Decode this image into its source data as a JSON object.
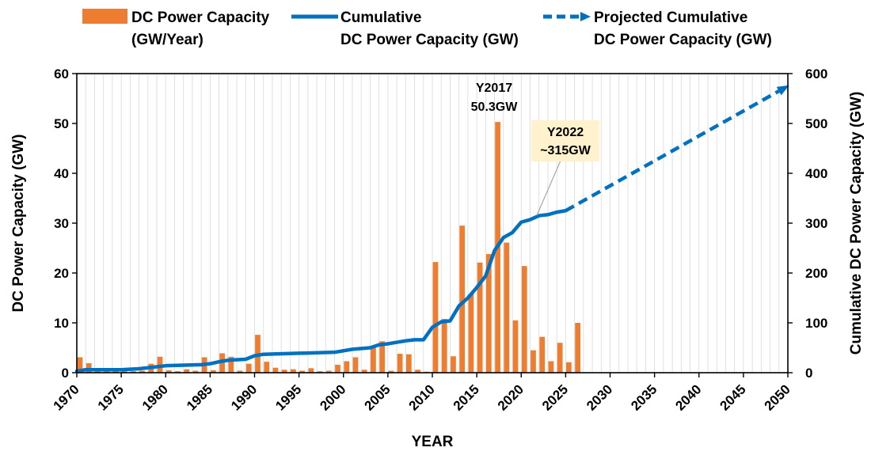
{
  "chart_data": {
    "type": "bar+line",
    "colors": {
      "bars": "#ED7D31",
      "line": "#0070C0",
      "axis": "#000000",
      "grid": "#D9D9D9",
      "callout_bg": "#FFF2CC",
      "leader": "#A6A6A6"
    },
    "legend": {
      "position": "top",
      "items": [
        {
          "kind": "bar",
          "line1": "DC Power Capacity",
          "line2": "(GW/Year)"
        },
        {
          "kind": "line",
          "line1": "Cumulative",
          "line2": "DC Power Capacity (GW)"
        },
        {
          "kind": "dashed-arrow",
          "line1": "Projected Cumulative",
          "line2": "DC Power Capacity (GW)"
        }
      ]
    },
    "xlabel": "YEAR",
    "ylabel_left": "DC Power Capacity (GW)",
    "ylabel_right": "Cumulative DC Power Capacity (GW)",
    "xlim": [
      1970,
      2050
    ],
    "ylim_left": [
      0,
      60
    ],
    "ylim_right": [
      0,
      600
    ],
    "x_ticks": [
      1970,
      1975,
      1980,
      1985,
      1990,
      1995,
      2000,
      2005,
      2010,
      2015,
      2020,
      2025,
      2030,
      2035,
      2040,
      2045,
      2050
    ],
    "y_ticks_left": [
      0,
      10,
      20,
      30,
      40,
      50,
      60
    ],
    "y_ticks_right": [
      0,
      100,
      200,
      300,
      400,
      500,
      600
    ],
    "grid": "vertical",
    "annual_capacity": {
      "name": "DC Power Capacity (GW/Year)",
      "x": [
        1970,
        1971,
        1972,
        1973,
        1974,
        1975,
        1976,
        1977,
        1978,
        1979,
        1980,
        1981,
        1982,
        1983,
        1984,
        1985,
        1986,
        1987,
        1988,
        1989,
        1990,
        1991,
        1992,
        1993,
        1994,
        1995,
        1996,
        1997,
        1998,
        1999,
        2000,
        2001,
        2002,
        2003,
        2004,
        2005,
        2006,
        2007,
        2008,
        2009,
        2010,
        2011,
        2012,
        2013,
        2014,
        2015,
        2016,
        2017,
        2018,
        2019,
        2020,
        2021,
        2022,
        2023,
        2024,
        2025,
        2026
      ],
      "values": [
        3.1,
        1.9,
        0.5,
        0.4,
        0.3,
        0.3,
        0.3,
        0.4,
        1.8,
        3.2,
        0.5,
        0.3,
        0.7,
        0.4,
        3.1,
        0.5,
        3.9,
        3.2,
        0.4,
        1.8,
        7.6,
        2.2,
        1.0,
        0.6,
        0.7,
        0.4,
        0.9,
        0.3,
        0.4,
        1.6,
        2.3,
        3.1,
        0.6,
        5.0,
        6.3,
        0.4,
        3.8,
        3.7,
        0.6,
        0.2,
        22.2,
        10.8,
        3.3,
        29.5,
        15.8,
        22.1,
        23.8,
        50.3,
        26.1,
        10.5,
        21.4,
        4.5,
        7.2,
        2.3,
        6.0,
        2.1,
        10.0
      ]
    },
    "cumulative": {
      "name": "Cumulative DC Power Capacity (GW)",
      "x": [
        1970,
        1971,
        1975,
        1977,
        1980,
        1984,
        1985,
        1986,
        1987,
        1989,
        1990,
        1991,
        1995,
        1999,
        2001,
        2003,
        2004,
        2005,
        2007,
        2008,
        2009,
        2010,
        2011,
        2012,
        2013,
        2014,
        2015,
        2016,
        2017,
        2018,
        2019,
        2020,
        2021,
        2022,
        2023,
        2024,
        2025
      ],
      "values": [
        3,
        6,
        6,
        8,
        14,
        16,
        18,
        22,
        25,
        27,
        34,
        37,
        39,
        41,
        47,
        50,
        56,
        58,
        64,
        66,
        66,
        91,
        102,
        104,
        134,
        150,
        171,
        194,
        245,
        271,
        281,
        302,
        307,
        315,
        317,
        322,
        325
      ]
    },
    "projected": {
      "name": "Projected Cumulative DC Power Capacity (GW)",
      "x": [
        2025,
        2050
      ],
      "values": [
        325,
        575
      ]
    },
    "annotations": [
      {
        "line1": "Y2017",
        "line2": "50.3GW",
        "x": 2017,
        "y_left": 50.3
      },
      {
        "line1": "Y2022",
        "line2": "~315GW",
        "x": 2022,
        "y_right": 315,
        "callout": true
      }
    ]
  }
}
